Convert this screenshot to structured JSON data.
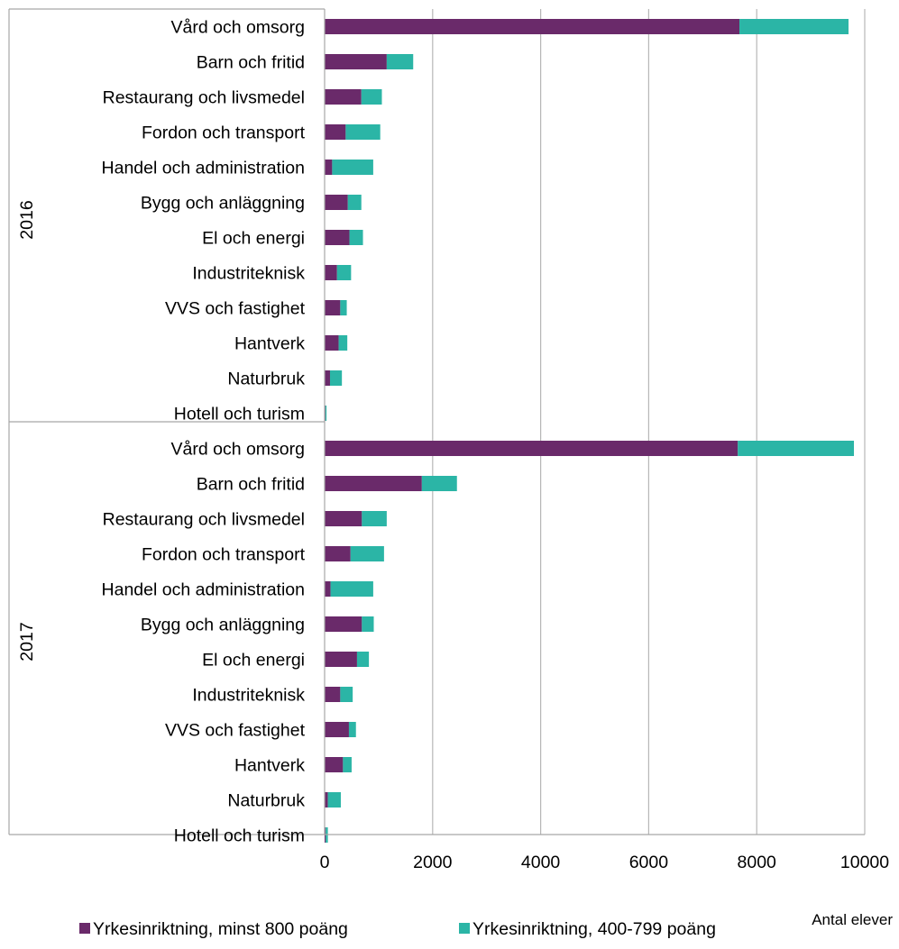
{
  "chart_data": {
    "type": "bar",
    "orientation": "horizontal",
    "stacked": true,
    "xlabel": "Antal elever",
    "xlim": [
      0,
      10000
    ],
    "xticks": [
      0,
      2000,
      4000,
      6000,
      8000,
      10000
    ],
    "grid": true,
    "legend_position": "bottom",
    "groups": [
      {
        "label": "2016",
        "categories": [
          "Vård och omsorg",
          "Barn och fritid",
          "Restaurang och livsmedel",
          "Fordon och transport",
          "Handel och administration",
          "Bygg och anläggning",
          "El och energi",
          "Industriteknisk",
          "VVS och fastighet",
          "Hantverk",
          "Naturbruk",
          "Hotell och turism"
        ],
        "series": [
          {
            "name": "Yrkesinriktning, minst 800 poäng",
            "color": "#6a2a6a",
            "values": [
              7680,
              1150,
              680,
              390,
              140,
              430,
              460,
              230,
              290,
              260,
              100,
              15
            ]
          },
          {
            "name": "Yrkesinriktning, 400-799 poäng",
            "color": "#2bb5a6",
            "values": [
              2020,
              490,
              380,
              640,
              760,
              250,
              250,
              260,
              120,
              160,
              220,
              20
            ]
          }
        ]
      },
      {
        "label": "2017",
        "categories": [
          "Vård och omsorg",
          "Barn och fritid",
          "Restaurang och livsmedel",
          "Fordon och transport",
          "Handel och administration",
          "Bygg och anläggning",
          "El och energi",
          "Industriteknisk",
          "VVS och fastighet",
          "Hantverk",
          "Naturbruk",
          "Hotell och turism"
        ],
        "series": [
          {
            "name": "Yrkesinriktning, minst 800 poäng",
            "color": "#6a2a6a",
            "values": [
              7650,
              1800,
              690,
              480,
              110,
              690,
              600,
              290,
              450,
              340,
              60,
              20
            ]
          },
          {
            "name": "Yrkesinriktning, 400-799 poäng",
            "color": "#2bb5a6",
            "values": [
              2150,
              650,
              460,
              620,
              790,
              220,
              220,
              230,
              130,
              160,
              240,
              40
            ]
          }
        ]
      }
    ],
    "legend": [
      {
        "name": "Yrkesinriktning, minst 800 poäng",
        "color": "#6a2a6a"
      },
      {
        "name": "Yrkesinriktning, 400-799 poäng",
        "color": "#2bb5a6"
      }
    ]
  }
}
